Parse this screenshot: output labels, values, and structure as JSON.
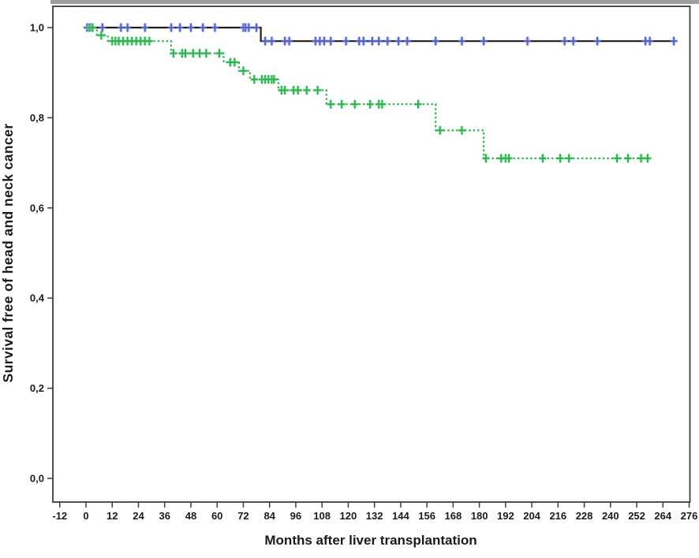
{
  "figure": {
    "background_color": "#ffffff",
    "frame_color": "#3d3d3d",
    "top_strip_color": "#9e9e9e"
  },
  "chart_data": {
    "type": "line",
    "subtype": "kaplan-meier-step",
    "title": "",
    "xlabel": "Months after liver transplantation",
    "ylabel": "Survival free of head and neck cancer",
    "xlim": [
      -15,
      276
    ],
    "ylim": [
      -0.05,
      1.05
    ],
    "grid": false,
    "legend_position": "none",
    "x_tick_values": [
      -12,
      0,
      12,
      24,
      36,
      48,
      60,
      72,
      84,
      96,
      108,
      120,
      132,
      144,
      156,
      168,
      180,
      192,
      204,
      216,
      228,
      240,
      252,
      264,
      276
    ],
    "y_ticks": [
      {
        "label": "1,0",
        "value": 1.0
      },
      {
        "label": "0,8",
        "value": 0.8
      },
      {
        "label": "0,6",
        "value": 0.6
      },
      {
        "label": "0,4",
        "value": 0.4
      },
      {
        "label": "0,2",
        "value": 0.2
      },
      {
        "label": "0,0",
        "value": 0.0
      }
    ],
    "series": [
      {
        "name": "series-black-solid",
        "line_color": "#1c1c1c",
        "line_style": "solid",
        "censor_color": "#4f61c8",
        "censor_halo_color": "#a3ade8",
        "steps": [
          [
            0,
            1.0
          ],
          [
            80,
            1.0
          ],
          [
            80,
            0.97
          ],
          [
            269,
            0.97
          ]
        ],
        "censors": [
          [
            0.5,
            1.0
          ],
          [
            2,
            1.0
          ],
          [
            7.5,
            1.0
          ],
          [
            16,
            1.0
          ],
          [
            19,
            1.0
          ],
          [
            27,
            1.0
          ],
          [
            39,
            1.0
          ],
          [
            43,
            1.0
          ],
          [
            48,
            1.0
          ],
          [
            53.5,
            1.0
          ],
          [
            59,
            1.0
          ],
          [
            72,
            1.0
          ],
          [
            73,
            1.0
          ],
          [
            74.5,
            1.0
          ],
          [
            78,
            1.0
          ],
          [
            82,
            0.97
          ],
          [
            85,
            0.97
          ],
          [
            91,
            0.97
          ],
          [
            93,
            0.97
          ],
          [
            105,
            0.97
          ],
          [
            107,
            0.97
          ],
          [
            109,
            0.97
          ],
          [
            112,
            0.97
          ],
          [
            119,
            0.97
          ],
          [
            125,
            0.97
          ],
          [
            127,
            0.97
          ],
          [
            131,
            0.97
          ],
          [
            134,
            0.97
          ],
          [
            138,
            0.97
          ],
          [
            143,
            0.97
          ],
          [
            147,
            0.97
          ],
          [
            160,
            0.97
          ],
          [
            172,
            0.97
          ],
          [
            182,
            0.97
          ],
          [
            202,
            0.97
          ],
          [
            219,
            0.97
          ],
          [
            223,
            0.97
          ],
          [
            234,
            0.97
          ],
          [
            256,
            0.97
          ],
          [
            258,
            0.97
          ],
          [
            269,
            0.97
          ]
        ]
      },
      {
        "name": "series-green-dashed",
        "line_color": "#2db04e",
        "line_style": "dotted",
        "censor_color": "#2db04e",
        "censor_halo_color": "#96e0ab",
        "steps": [
          [
            0,
            1.0
          ],
          [
            5,
            1.0
          ],
          [
            5,
            0.983
          ],
          [
            10,
            0.983
          ],
          [
            10,
            0.97
          ],
          [
            39,
            0.97
          ],
          [
            39,
            0.943
          ],
          [
            63,
            0.943
          ],
          [
            63,
            0.923
          ],
          [
            70,
            0.923
          ],
          [
            70,
            0.904
          ],
          [
            75,
            0.904
          ],
          [
            75,
            0.885
          ],
          [
            88,
            0.885
          ],
          [
            88,
            0.861
          ],
          [
            110,
            0.861
          ],
          [
            110,
            0.83
          ],
          [
            160,
            0.83
          ],
          [
            160,
            0.772
          ],
          [
            182,
            0.772
          ],
          [
            182,
            0.71
          ],
          [
            257,
            0.71
          ]
        ],
        "censors": [
          [
            1.5,
            1.0
          ],
          [
            3,
            1.0
          ],
          [
            7,
            0.983
          ],
          [
            12,
            0.97
          ],
          [
            13.5,
            0.97
          ],
          [
            15,
            0.97
          ],
          [
            17,
            0.97
          ],
          [
            19,
            0.97
          ],
          [
            21,
            0.97
          ],
          [
            23,
            0.97
          ],
          [
            25,
            0.97
          ],
          [
            27,
            0.97
          ],
          [
            29,
            0.97
          ],
          [
            40,
            0.943
          ],
          [
            44,
            0.943
          ],
          [
            45.5,
            0.943
          ],
          [
            49,
            0.943
          ],
          [
            52,
            0.943
          ],
          [
            55,
            0.943
          ],
          [
            61,
            0.943
          ],
          [
            66,
            0.923
          ],
          [
            68,
            0.923
          ],
          [
            72,
            0.904
          ],
          [
            77,
            0.885
          ],
          [
            80.5,
            0.885
          ],
          [
            82,
            0.885
          ],
          [
            83.5,
            0.885
          ],
          [
            85,
            0.885
          ],
          [
            86,
            0.885
          ],
          [
            89.5,
            0.861
          ],
          [
            91,
            0.861
          ],
          [
            95,
            0.861
          ],
          [
            97,
            0.861
          ],
          [
            101,
            0.861
          ],
          [
            106,
            0.861
          ],
          [
            112,
            0.83
          ],
          [
            117,
            0.83
          ],
          [
            123,
            0.83
          ],
          [
            130,
            0.83
          ],
          [
            134,
            0.83
          ],
          [
            135.5,
            0.83
          ],
          [
            152,
            0.83
          ],
          [
            162,
            0.772
          ],
          [
            172,
            0.772
          ],
          [
            183,
            0.71
          ],
          [
            190,
            0.71
          ],
          [
            192,
            0.71
          ],
          [
            193.5,
            0.71
          ],
          [
            209,
            0.71
          ],
          [
            217,
            0.71
          ],
          [
            221,
            0.71
          ],
          [
            243,
            0.71
          ],
          [
            248,
            0.71
          ],
          [
            254,
            0.71
          ],
          [
            257,
            0.71
          ]
        ]
      }
    ]
  }
}
